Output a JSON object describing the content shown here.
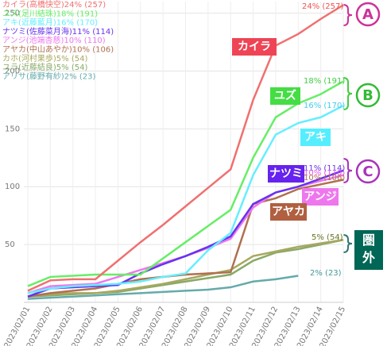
{
  "chart_data": {
    "type": "line",
    "x": [
      "2023/02/01",
      "2023/02/02",
      "2023/02/03",
      "2023/02/04",
      "2023/02/05",
      "2023/02/06",
      "2023/02/07",
      "2023/02/08",
      "2023/02/09",
      "2023/02/10",
      "2023/02/11",
      "2023/02/12",
      "2023/02/13",
      "2023/02/14",
      "2023/02/15"
    ],
    "series": [
      {
        "name": "カイラ(高橋快空)24% (257)",
        "color": "#f07070",
        "values": [
          10,
          19,
          20,
          20,
          36,
          52,
          67,
          83,
          99,
          115,
          175,
          222,
          232,
          245,
          257
        ]
      },
      {
        "name": "ユズ(足川結珠)18% (191)",
        "color": "#66ee66",
        "values": [
          14,
          22,
          23,
          24,
          24,
          24,
          38,
          52,
          66,
          80,
          125,
          160,
          172,
          180,
          191
        ]
      },
      {
        "name": "アキ(近藤藍月)16% (170)",
        "color": "#66eeff",
        "values": [
          8,
          12,
          14,
          15,
          16,
          18,
          22,
          25,
          45,
          60,
          110,
          145,
          155,
          160,
          170
        ]
      },
      {
        "name": "ナツミ(佐藤菜月海)11% (114)",
        "color": "#6633ee",
        "values": [
          5,
          12,
          13,
          14,
          15,
          25,
          33,
          40,
          48,
          57,
          85,
          95,
          100,
          107,
          114
        ]
      },
      {
        "name": "アンジ(池端杏慈)10% (110)",
        "color": "#ee77ee",
        "values": [
          8,
          14,
          15,
          16,
          22,
          28,
          34,
          40,
          47,
          55,
          82,
          95,
          100,
          105,
          110
        ]
      },
      {
        "name": "アヤカ(中山あやか)10% (106)",
        "color": "#b07050",
        "values": [
          5,
          8,
          10,
          12,
          16,
          20,
          22,
          24,
          25,
          26,
          85,
          90,
          98,
          102,
          106
        ]
      },
      {
        "name": "カホ(河村果歩)5% (54)",
        "color": "#a8a860",
        "values": [
          5,
          7,
          8,
          8,
          10,
          13,
          16,
          20,
          24,
          28,
          40,
          44,
          48,
          51,
          54
        ]
      },
      {
        "name": "ユラ(近藤結良)5% (54)",
        "color": "#88aa66",
        "values": [
          5,
          6,
          7,
          8,
          9,
          12,
          15,
          18,
          21,
          24,
          36,
          43,
          46,
          50,
          54
        ]
      },
      {
        "name": "アリサ(藤野有紗)2% (23)",
        "color": "#66aaaa",
        "values": [
          3,
          4,
          5,
          6,
          7,
          8,
          9,
          10,
          11,
          13,
          18,
          20,
          23,
          null,
          null
        ]
      }
    ],
    "ylim": [
      0,
      260
    ],
    "yticks": [
      50,
      100,
      150,
      200,
      250
    ],
    "grid": true,
    "annotations": [
      {
        "text": "24% (257)",
        "color": "#f05050"
      },
      {
        "text": "18% (191)",
        "color": "#44cc44"
      },
      {
        "text": "16% (170)",
        "color": "#44ccee"
      },
      {
        "text": "11% (114)",
        "color": "#6633ee"
      },
      {
        "text": "10% (110)",
        "color": "#ee55ee"
      },
      {
        "text": "10% (106)",
        "color": "#b07050"
      },
      {
        "text": "5% (54)",
        "color": "#667722"
      },
      {
        "text": "2% (23)",
        "color": "#449999"
      }
    ],
    "name_tags": [
      {
        "text": "カイラ",
        "color": "#ee4455"
      },
      {
        "text": "ユズ",
        "color": "#44dd44"
      },
      {
        "text": "アキ",
        "color": "#55eeff"
      },
      {
        "text": "ナツミ",
        "color": "#6622ee"
      },
      {
        "text": "アンジ",
        "color": "#ee77ee"
      },
      {
        "text": "アヤカ",
        "color": "#b06040"
      }
    ],
    "groups": [
      "A",
      "B",
      "C",
      "圏外"
    ]
  }
}
